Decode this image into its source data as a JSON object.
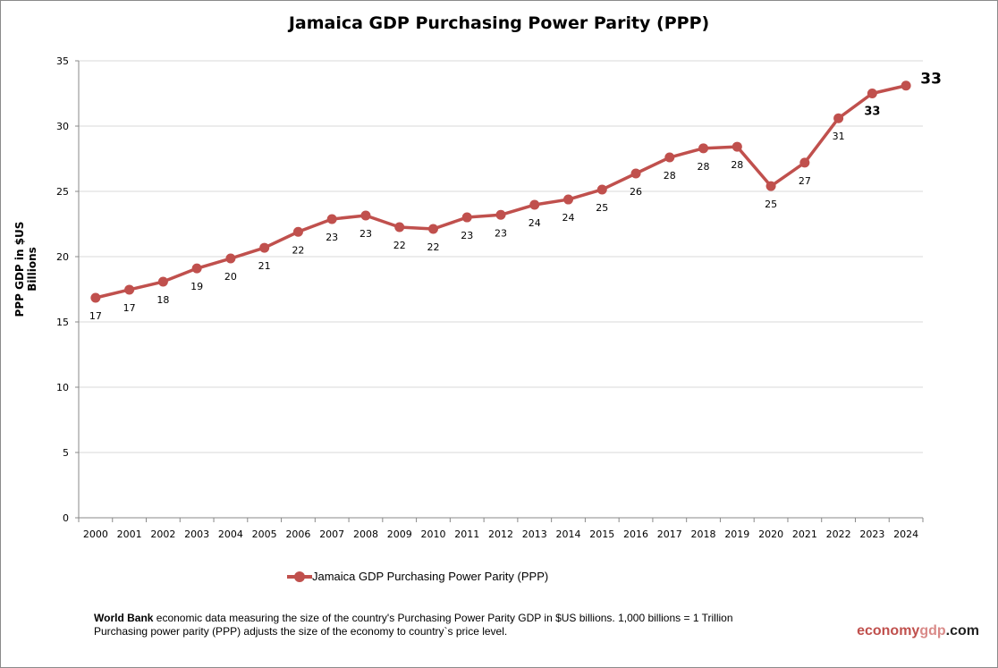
{
  "chart_data": {
    "type": "line",
    "title": "Jamaica GDP Purchasing Power Parity (PPP)",
    "xlabel": "",
    "ylabel": "PPP GDP in $US Billions",
    "ylim": [
      0,
      35
    ],
    "yticks": [
      0,
      5,
      10,
      15,
      20,
      25,
      30,
      35
    ],
    "grid": true,
    "legend_position": "bottom",
    "categories": [
      "2000",
      "2001",
      "2002",
      "2003",
      "2004",
      "2005",
      "2006",
      "2007",
      "2008",
      "2009",
      "2010",
      "2011",
      "2012",
      "2013",
      "2014",
      "2015",
      "2016",
      "2017",
      "2018",
      "2019",
      "2020",
      "2021",
      "2022",
      "2023",
      "2024"
    ],
    "series": [
      {
        "name": "Jamaica GDP Purchasing Power Parity (PPP)",
        "color": "#c0504d",
        "values": [
          16.85,
          17.47,
          18.08,
          19.1,
          19.86,
          20.68,
          21.9,
          22.88,
          23.15,
          22.26,
          22.12,
          23.01,
          23.2,
          23.97,
          24.38,
          25.14,
          26.37,
          27.6,
          28.3,
          28.42,
          25.4,
          27.2,
          30.6,
          32.5,
          33.1
        ],
        "data_labels": [
          "17",
          "17",
          "18",
          "19",
          "20",
          "21",
          "22",
          "23",
          "23",
          "22",
          "22",
          "23",
          "23",
          "24",
          "24",
          "25",
          "26",
          "28",
          "28",
          "28",
          "25",
          "27",
          "31",
          "33",
          "33"
        ]
      }
    ]
  },
  "note": {
    "bold": "World Bank",
    "line1": " economic data  measuring the size of the country's Purchasing Power Parity GDP in $US billions. 1,000 billions = 1 Trillion",
    "line2": "Purchasing power parity (PPP) adjusts the size of the economy to country`s price level."
  },
  "brand": {
    "part1": "economy",
    "part2": "gdp",
    "part3": ".com",
    "color1": "#c0504d",
    "color2": "#d98a88",
    "color3": "#222222"
  }
}
